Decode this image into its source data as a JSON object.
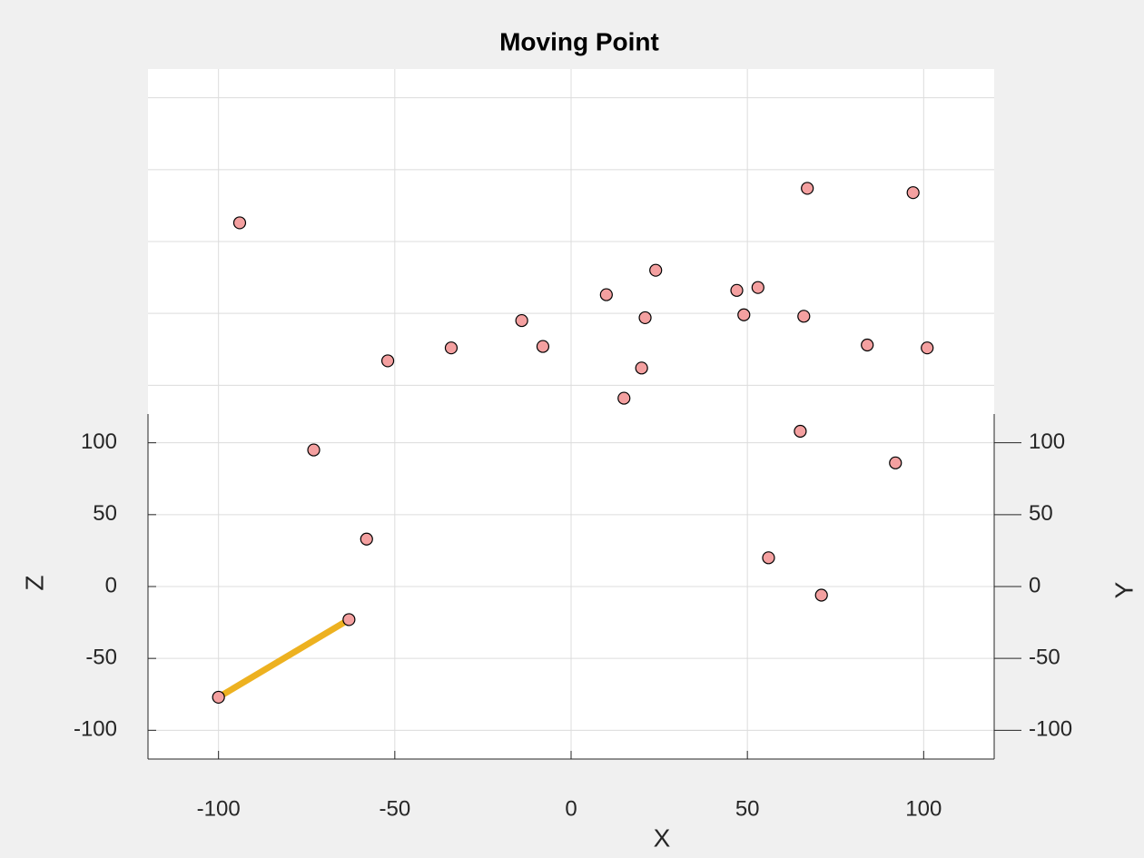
{
  "chart_data": {
    "type": "scatter3d",
    "title": "Moving Point",
    "xlabel": "X",
    "ylabel": "Y",
    "zlabel": "Z",
    "xlim": [
      -120,
      120
    ],
    "ylim": [
      -120,
      120
    ],
    "zlim": [
      -120,
      120
    ],
    "xticks": [
      -100,
      -50,
      0,
      50,
      100
    ],
    "yticks": [
      -100,
      -50,
      0,
      50,
      100
    ],
    "zticks": [
      -100,
      -50,
      0,
      50,
      100
    ],
    "grid": true,
    "series": [
      {
        "type": "scatter",
        "color": "#f4a0a0",
        "x": [
          -94,
          -73,
          -58,
          -63,
          -100,
          -52,
          -34,
          -14,
          -8,
          10,
          24,
          21,
          20,
          15,
          47,
          53,
          49,
          66,
          67,
          97,
          84,
          101,
          65,
          92,
          56,
          71
        ],
        "y": [
          67,
          -12,
          -43,
          -71,
          -98,
          18,
          23,
          32,
          23,
          41,
          50,
          33,
          16,
          5,
          43,
          44,
          34,
          34,
          78,
          77,
          24,
          23,
          -6,
          -17,
          -50,
          -63
        ],
        "z": [
          66,
          -13,
          -44,
          -72,
          -99,
          19,
          23,
          33,
          24,
          42,
          50,
          34,
          16,
          6,
          43,
          44,
          35,
          34,
          79,
          77,
          24,
          23,
          -6,
          -17,
          -50,
          -63
        ]
      },
      {
        "type": "line",
        "color": "#edb120",
        "x": [
          -100,
          -63
        ],
        "y": [
          -98,
          -71
        ],
        "z": [
          -99,
          -72
        ]
      }
    ]
  }
}
